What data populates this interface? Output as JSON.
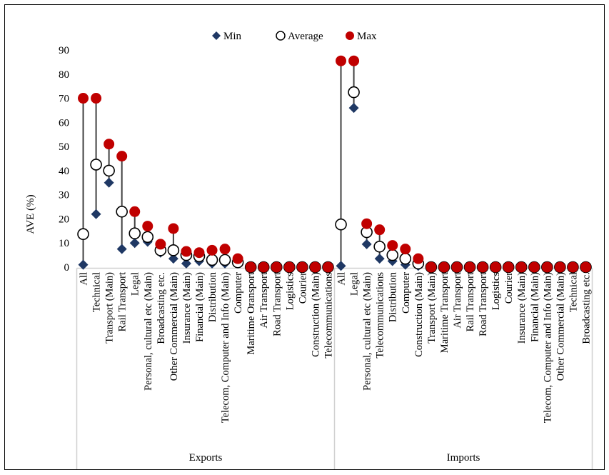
{
  "chart_data": {
    "type": "scatter",
    "subtype": "min-average-max range plot",
    "ylabel": "AVE (%)",
    "ylim": [
      0,
      90
    ],
    "yticks": [
      0,
      10,
      20,
      30,
      40,
      50,
      60,
      70,
      80,
      90
    ],
    "grid": false,
    "legend": {
      "placement": "top",
      "entries": [
        {
          "name": "Min",
          "marker": "diamond",
          "color": "#1f3864"
        },
        {
          "name": "Average",
          "marker": "open-circle",
          "color": "#000000"
        },
        {
          "name": "Max",
          "marker": "filled-circle",
          "color": "#c00000"
        }
      ]
    },
    "groups": [
      {
        "name": "Exports",
        "categories": [
          "All",
          "Technical",
          "Transport (Main)",
          "Rail Transport",
          "Legal",
          "Personal, cultural etc (Main)",
          "Broadcasting etc.",
          "Other Commercial (Main)",
          "Insurance (Main)",
          "Financial (Main)",
          "Distribution",
          "Telecom, Computer and Info (Main)",
          "Computer",
          "Maritime Oransport",
          "Air Transport",
          "Road Transport",
          "Logistics",
          "Courier",
          "Construction (Main)",
          "Telecommunications"
        ],
        "min": [
          1,
          22,
          35,
          7.5,
          10,
          10.5,
          6,
          3.5,
          1.5,
          2.5,
          1.5,
          1.5,
          1.5,
          0,
          0,
          0,
          0,
          0,
          0,
          0
        ],
        "average": [
          13.7,
          42.5,
          40,
          23,
          14,
          12.5,
          7,
          7,
          5,
          4.5,
          3,
          3,
          2,
          0,
          0,
          0,
          0,
          0,
          0,
          0
        ],
        "max": [
          70,
          70,
          51,
          46,
          23,
          17,
          9.5,
          16,
          6.5,
          6,
          7,
          7.5,
          3.5,
          0,
          0,
          0,
          0,
          0,
          0,
          0
        ]
      },
      {
        "name": "Imports",
        "categories": [
          "All",
          "Legal",
          "Personal, cultural etc (Main)",
          "Telecommunications",
          "Distribution",
          "Computer",
          "Construction (Main)",
          "Transport (Main)",
          "Maritime Transport",
          "Air Transport",
          "Rail Transport",
          "Road Transport",
          "Logistics",
          "Courier",
          "Insurance (Main)",
          "Financial (Main)",
          "Telecom, Computer and Info (Main)",
          "Other Commercial (Main)",
          "Technical",
          "Broadcasting etc."
        ],
        "min": [
          0.5,
          66,
          9.5,
          3.5,
          2.5,
          1,
          0.5,
          0,
          0,
          0,
          0,
          0,
          0,
          0,
          0,
          0,
          0,
          0,
          0,
          0
        ],
        "average": [
          17.7,
          72.5,
          14.5,
          8.5,
          5,
          3.5,
          1.5,
          0,
          0,
          0,
          0,
          0,
          0,
          0,
          0,
          0,
          0,
          0,
          0,
          0
        ],
        "max": [
          85.5,
          85.5,
          18,
          15.5,
          9,
          7.5,
          3.5,
          0,
          0,
          0,
          0,
          0,
          0,
          0,
          0,
          0,
          0,
          0,
          0,
          0
        ]
      }
    ]
  }
}
